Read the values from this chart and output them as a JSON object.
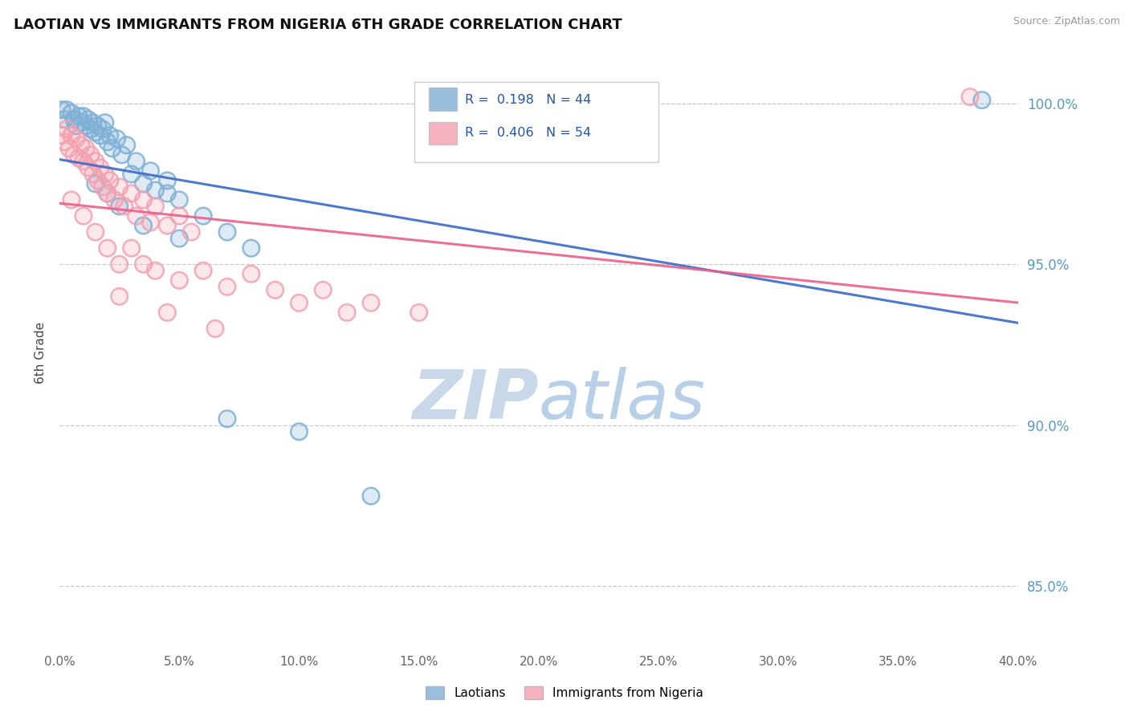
{
  "title": "LAOTIAN VS IMMIGRANTS FROM NIGERIA 6TH GRADE CORRELATION CHART",
  "source": "Source: ZipAtlas.com",
  "ylabel": "6th Grade",
  "legend_blue_label": "Laotians",
  "legend_pink_label": "Immigrants from Nigeria",
  "R_blue": 0.198,
  "N_blue": 44,
  "R_pink": 0.406,
  "N_pink": 54,
  "xlim": [
    0.0,
    40.0
  ],
  "ylim": [
    83.0,
    101.5
  ],
  "xticks": [
    0.0,
    5.0,
    10.0,
    15.0,
    20.0,
    25.0,
    30.0,
    35.0,
    40.0
  ],
  "yticks": [
    85.0,
    90.0,
    95.0,
    100.0
  ],
  "blue_color": "#7EB0D5",
  "pink_color": "#F4A0B0",
  "trend_blue": "#3A6BC8",
  "trend_pink": "#E8608A",
  "background_color": "#ffffff",
  "watermark_zip": "ZIP",
  "watermark_atlas": "atlas",
  "watermark_color_zip": "#c8d8e8",
  "watermark_color_atlas": "#b8cfe8",
  "blue_scatter": [
    [
      0.1,
      99.8
    ],
    [
      0.2,
      99.5
    ],
    [
      0.3,
      99.8
    ],
    [
      0.5,
      99.7
    ],
    [
      0.6,
      99.5
    ],
    [
      0.7,
      99.3
    ],
    [
      0.8,
      99.6
    ],
    [
      0.9,
      99.4
    ],
    [
      1.0,
      99.6
    ],
    [
      1.1,
      99.3
    ],
    [
      1.2,
      99.5
    ],
    [
      1.3,
      99.2
    ],
    [
      1.4,
      99.4
    ],
    [
      1.5,
      99.1
    ],
    [
      1.6,
      99.3
    ],
    [
      1.7,
      99.0
    ],
    [
      1.8,
      99.2
    ],
    [
      1.9,
      99.4
    ],
    [
      2.0,
      98.8
    ],
    [
      2.1,
      99.0
    ],
    [
      2.2,
      98.6
    ],
    [
      2.4,
      98.9
    ],
    [
      2.6,
      98.4
    ],
    [
      2.8,
      98.7
    ],
    [
      3.0,
      97.8
    ],
    [
      3.2,
      98.2
    ],
    [
      3.5,
      97.5
    ],
    [
      3.8,
      97.9
    ],
    [
      4.0,
      97.3
    ],
    [
      4.5,
      97.6
    ],
    [
      5.0,
      97.0
    ],
    [
      6.0,
      96.5
    ],
    [
      7.0,
      96.0
    ],
    [
      8.0,
      95.5
    ],
    [
      4.5,
      97.2
    ],
    [
      1.5,
      97.5
    ],
    [
      2.0,
      97.2
    ],
    [
      2.5,
      96.8
    ],
    [
      3.5,
      96.2
    ],
    [
      5.0,
      95.8
    ],
    [
      7.0,
      90.2
    ],
    [
      10.0,
      89.8
    ],
    [
      13.0,
      87.8
    ],
    [
      38.5,
      100.1
    ]
  ],
  "pink_scatter": [
    [
      0.1,
      99.0
    ],
    [
      0.2,
      98.8
    ],
    [
      0.3,
      99.2
    ],
    [
      0.4,
      98.6
    ],
    [
      0.5,
      99.0
    ],
    [
      0.6,
      98.4
    ],
    [
      0.7,
      98.9
    ],
    [
      0.8,
      98.3
    ],
    [
      0.9,
      98.7
    ],
    [
      1.0,
      98.2
    ],
    [
      1.1,
      98.6
    ],
    [
      1.2,
      98.0
    ],
    [
      1.3,
      98.4
    ],
    [
      1.4,
      97.8
    ],
    [
      1.5,
      98.2
    ],
    [
      1.6,
      97.6
    ],
    [
      1.7,
      98.0
    ],
    [
      1.8,
      97.4
    ],
    [
      1.9,
      97.8
    ],
    [
      2.0,
      97.2
    ],
    [
      2.1,
      97.6
    ],
    [
      2.3,
      97.0
    ],
    [
      2.5,
      97.4
    ],
    [
      2.7,
      96.8
    ],
    [
      3.0,
      97.2
    ],
    [
      3.2,
      96.5
    ],
    [
      3.5,
      97.0
    ],
    [
      3.8,
      96.3
    ],
    [
      4.0,
      96.8
    ],
    [
      4.5,
      96.2
    ],
    [
      5.0,
      96.5
    ],
    [
      5.5,
      96.0
    ],
    [
      0.5,
      97.0
    ],
    [
      1.0,
      96.5
    ],
    [
      1.5,
      96.0
    ],
    [
      2.0,
      95.5
    ],
    [
      2.5,
      95.0
    ],
    [
      3.0,
      95.5
    ],
    [
      3.5,
      95.0
    ],
    [
      4.0,
      94.8
    ],
    [
      5.0,
      94.5
    ],
    [
      6.0,
      94.8
    ],
    [
      7.0,
      94.3
    ],
    [
      8.0,
      94.7
    ],
    [
      9.0,
      94.2
    ],
    [
      10.0,
      93.8
    ],
    [
      11.0,
      94.2
    ],
    [
      12.0,
      93.5
    ],
    [
      13.0,
      93.8
    ],
    [
      2.5,
      94.0
    ],
    [
      4.5,
      93.5
    ],
    [
      6.5,
      93.0
    ],
    [
      15.0,
      93.5
    ],
    [
      38.0,
      100.2
    ]
  ]
}
